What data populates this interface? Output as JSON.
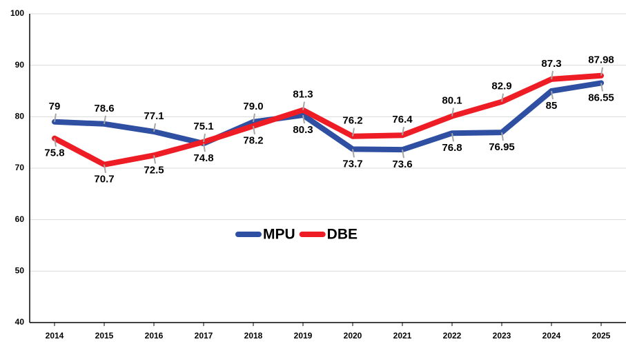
{
  "chart_data": {
    "type": "line",
    "categories": [
      "2014",
      "2015",
      "2016",
      "2017",
      "2018",
      "2019",
      "2020",
      "2021",
      "2022",
      "2023",
      "2024",
      "2025"
    ],
    "series": [
      {
        "name": "MPU",
        "color": "#2f4fa2",
        "values": [
          79,
          78.6,
          77.1,
          74.8,
          79.0,
          80.3,
          73.7,
          73.6,
          76.8,
          76.95,
          85,
          86.55
        ],
        "value_labels": [
          "79",
          "78.6",
          "77.1",
          "74.8",
          "79.0",
          "80.3",
          "73.7",
          "73.6",
          "76.8",
          "76.95",
          "85",
          "86.55"
        ]
      },
      {
        "name": "DBE",
        "color": "#ee1c25",
        "values": [
          75.8,
          70.7,
          72.5,
          75.1,
          78.2,
          81.3,
          76.2,
          76.4,
          80.1,
          82.9,
          87.3,
          87.98
        ],
        "value_labels": [
          "75.8",
          "70.7",
          "72.5",
          "75.1",
          "78.2",
          "81.3",
          "76.2",
          "76.4",
          "80.1",
          "82.9",
          "87.3",
          "87.98"
        ]
      }
    ],
    "ylim": [
      40,
      100
    ],
    "yticks": [
      40,
      50,
      60,
      70,
      80,
      90,
      100
    ],
    "grid": true,
    "legend": "center"
  }
}
